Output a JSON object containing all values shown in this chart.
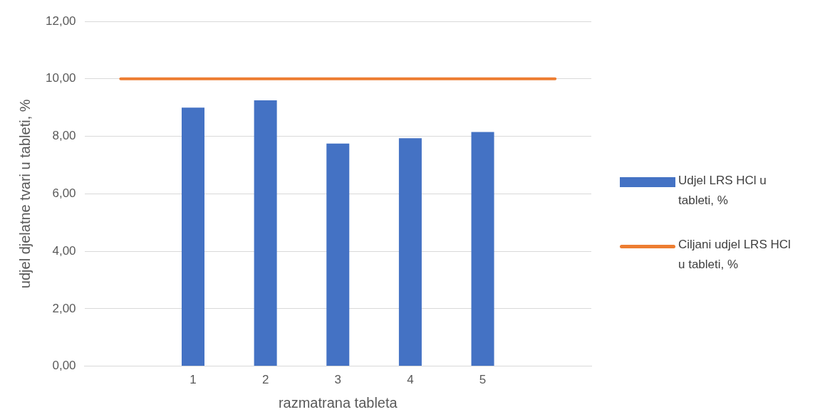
{
  "chart_data": {
    "type": "bar",
    "xlabel": "razmatrana tableta",
    "ylabel": "udjel djelatne tvari u tableti, %",
    "categories": [
      null,
      "1",
      "2",
      "3",
      "4",
      "5",
      null
    ],
    "series": [
      {
        "name": "Udjel LRS HCl u tableti, %",
        "color": "#4472c4",
        "values": [
          null,
          9.0,
          9.25,
          7.75,
          7.93,
          8.15,
          null
        ]
      },
      {
        "name": "Ciljani udjel LRS HCl u tableti, %",
        "type": "line",
        "color": "#ed7d31",
        "values": [
          10,
          10,
          10,
          10,
          10,
          10,
          10
        ]
      }
    ],
    "ylim": [
      0,
      12
    ],
    "yticks": [
      {
        "value": 0,
        "label": "0,00"
      },
      {
        "value": 2,
        "label": "2,00"
      },
      {
        "value": 4,
        "label": "4,00"
      },
      {
        "value": 6,
        "label": "6,00"
      },
      {
        "value": 8,
        "label": "8,00"
      },
      {
        "value": 10,
        "label": "10,00"
      },
      {
        "value": 12,
        "label": "12,00"
      }
    ],
    "grid": "y",
    "legend": "right",
    "marker": "none"
  }
}
